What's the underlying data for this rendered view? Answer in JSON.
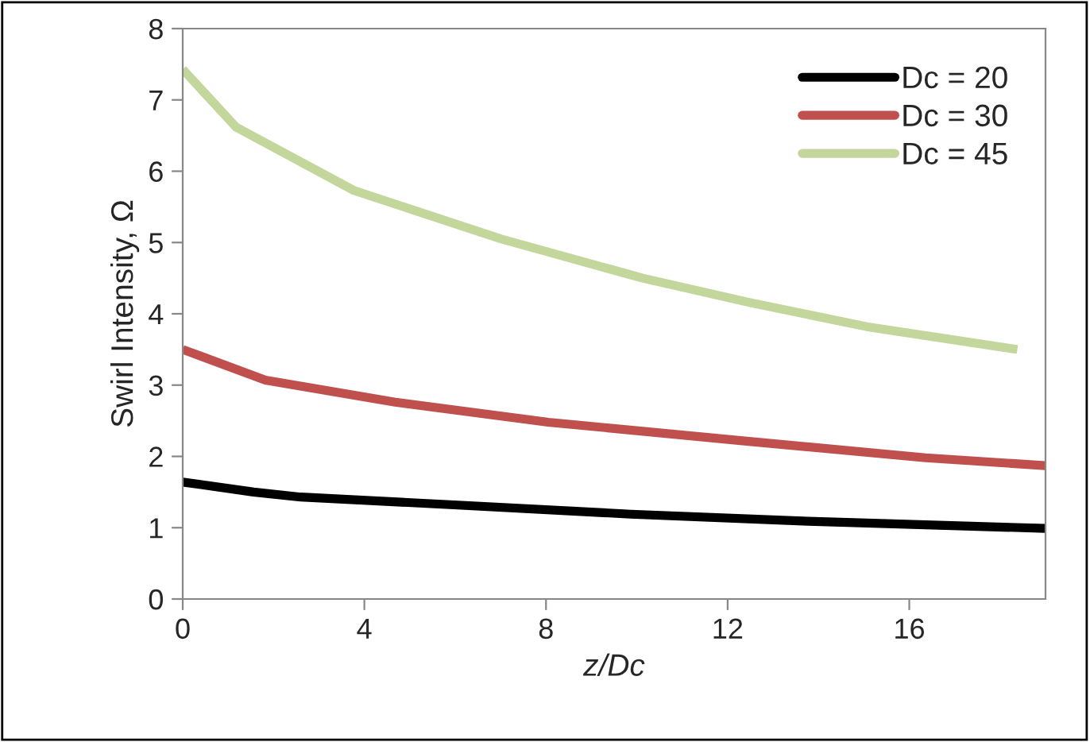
{
  "chart_data": {
    "type": "line",
    "xlabel": "z/Dc",
    "ylabel": "Swirl Intensity, Ω",
    "xlim": [
      0,
      19
    ],
    "xticks": [
      0,
      4,
      8,
      12,
      16
    ],
    "ylim": [
      0,
      8
    ],
    "yticks": [
      0,
      1,
      2,
      3,
      4,
      5,
      6,
      7,
      8
    ],
    "grid": false,
    "legend": "top right",
    "marker": "none",
    "line_style": "solid",
    "series": [
      {
        "name": "Dc = 20",
        "color": "#000000",
        "x": [
          0,
          1.56,
          2.6,
          5.97,
          9.87,
          13.77,
          19
        ],
        "values": [
          1.64,
          1.5,
          1.43,
          1.32,
          1.19,
          1.09,
          0.99
        ]
      },
      {
        "name": "Dc = 30",
        "color": "#c0504d",
        "x": [
          0,
          1.82,
          4.68,
          8.05,
          12.47,
          16.36,
          19
        ],
        "values": [
          3.5,
          3.07,
          2.76,
          2.48,
          2.21,
          1.98,
          1.87
        ]
      },
      {
        "name": "Dc = 45",
        "color": "#c3d69b",
        "x": [
          0,
          1.17,
          3.77,
          7.01,
          10.13,
          12.47,
          15.06,
          18.38
        ],
        "values": [
          7.43,
          6.62,
          5.73,
          5.05,
          4.5,
          4.16,
          3.82,
          3.5
        ]
      }
    ]
  }
}
